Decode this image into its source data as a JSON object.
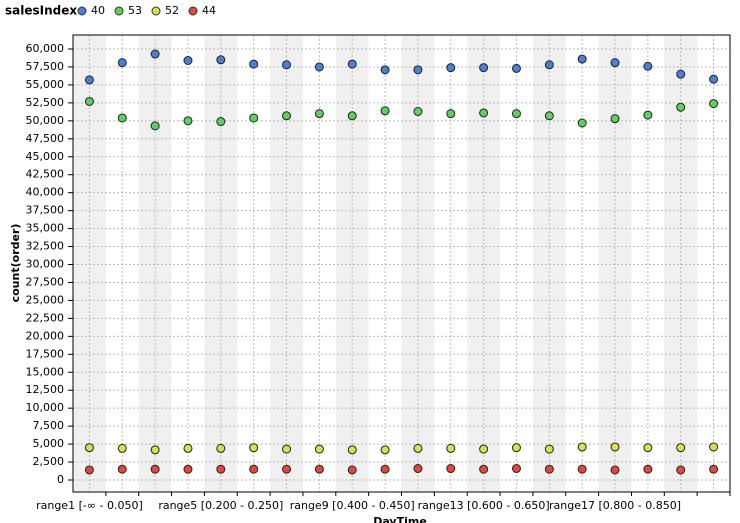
{
  "chart_data": {
    "type": "scatter",
    "legend_title": "salesIndex",
    "x_label": "DayTime",
    "y_label": "count(order)",
    "categories": [
      "range1 [-∞ - 0.050]",
      null,
      null,
      null,
      "range5 [0.200 - 0.250]",
      null,
      null,
      null,
      "range9 [0.400 - 0.450]",
      null,
      null,
      null,
      "range13 [0.600 - 0.650]",
      null,
      null,
      null,
      "range17 [0.800 - 0.850]",
      null,
      null,
      null
    ],
    "series": [
      {
        "name": "40",
        "color": "#4a7fd6",
        "values": [
          55700,
          58100,
          59300,
          58400,
          58500,
          57900,
          57800,
          57500,
          57900,
          57100,
          57100,
          57400,
          57400,
          57300,
          57800,
          58600,
          58100,
          57600,
          56500,
          55800
        ]
      },
      {
        "name": "53",
        "color": "#5cd15c",
        "values": [
          52700,
          50400,
          49300,
          50000,
          49900,
          50400,
          50700,
          51000,
          50700,
          51400,
          51300,
          51000,
          51100,
          51000,
          50700,
          49700,
          50300,
          50800,
          51900,
          52400
        ]
      },
      {
        "name": "52",
        "color": "#d8e04c",
        "values": [
          4500,
          4400,
          4200,
          4400,
          4400,
          4500,
          4300,
          4300,
          4200,
          4200,
          4400,
          4400,
          4300,
          4500,
          4300,
          4600,
          4600,
          4500,
          4500,
          4600
        ]
      },
      {
        "name": "44",
        "color": "#e2483a",
        "values": [
          1400,
          1500,
          1500,
          1500,
          1500,
          1500,
          1500,
          1500,
          1400,
          1500,
          1600,
          1600,
          1500,
          1600,
          1500,
          1500,
          1400,
          1500,
          1400,
          1500
        ]
      }
    ],
    "ylim": [
      -1670,
      61950
    ],
    "yticks": [
      0,
      {
        "value": 2500,
        "label": "2,500"
      },
      {
        "value": 5000,
        "label": "5,000"
      },
      {
        "value": 7500,
        "label": "7,500"
      },
      {
        "value": 10000,
        "label": "10,000"
      },
      {
        "value": 12500,
        "label": "12,500"
      },
      {
        "value": 15000,
        "label": "15,000"
      },
      {
        "value": 17500,
        "label": "17,500"
      },
      {
        "value": 20000,
        "label": "20,000"
      },
      {
        "value": 22500,
        "label": "22,500"
      },
      {
        "value": 25000,
        "label": "25,000"
      },
      {
        "value": 27500,
        "label": "27,500"
      },
      {
        "value": 30000,
        "label": "30,000"
      },
      {
        "value": 32500,
        "label": "32,500"
      },
      {
        "value": 35000,
        "label": "35,000"
      },
      {
        "value": 37500,
        "label": "37,500"
      },
      {
        "value": 40000,
        "label": "40,000"
      },
      {
        "value": 42500,
        "label": "42,500"
      },
      {
        "value": 45000,
        "label": "45,000"
      },
      {
        "value": 47500,
        "label": "47,500"
      },
      {
        "value": 50000,
        "label": "50,000"
      },
      {
        "value": 52500,
        "label": "52,500"
      },
      {
        "value": 55000,
        "label": "55,000"
      },
      {
        "value": 57500,
        "label": "57,500"
      },
      {
        "value": 60000,
        "label": "60,000"
      }
    ],
    "grid": true
  }
}
